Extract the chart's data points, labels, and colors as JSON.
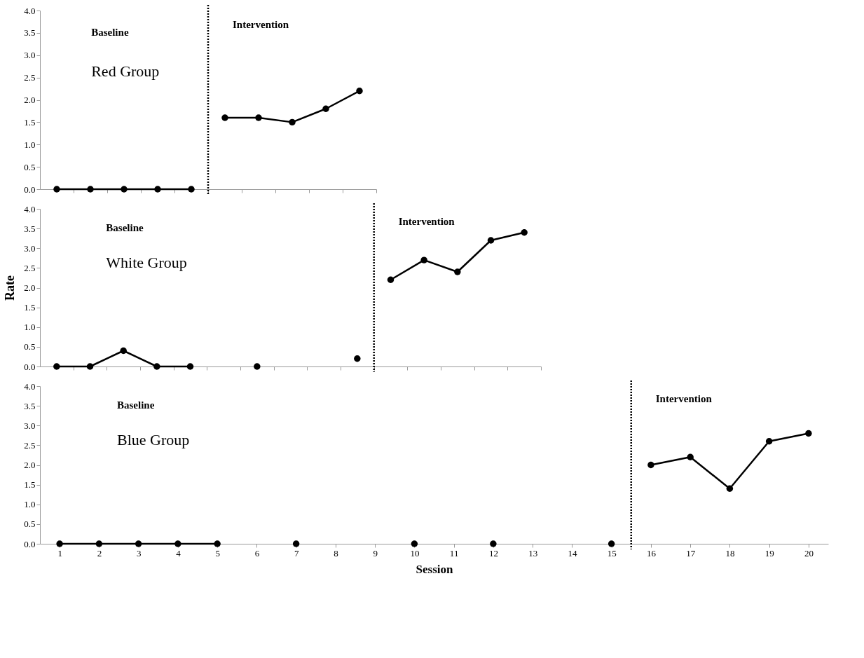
{
  "chart_data": [
    {
      "type": "line",
      "categories": [
        null,
        null,
        null,
        null,
        null,
        null,
        null,
        null,
        null,
        null
      ],
      "ylim": [
        0,
        4
      ],
      "marker": "circle",
      "grid": false,
      "tick_labels": "y",
      "yticks": [
        {
          "value": 0,
          "label": "0.0"
        },
        {
          "value": 0.5,
          "label": "0.5"
        },
        {
          "value": 1,
          "label": "1.0"
        },
        {
          "value": 1.5,
          "label": "1.5"
        },
        {
          "value": 2,
          "label": "2.0"
        },
        {
          "value": 2.5,
          "label": "2.5"
        },
        {
          "value": 3,
          "label": "3.0"
        },
        {
          "value": 3.5,
          "label": "3.5"
        },
        {
          "value": 4,
          "label": "4.0"
        }
      ],
      "annotations": [
        "Baseline",
        "Intervention",
        "Red Group"
      ],
      "series": [
        {
          "color": "#000000",
          "values": [
            0,
            0,
            0,
            0,
            0,
            null,
            null,
            null,
            null,
            null
          ]
        },
        {
          "color": "#000000",
          "values": [
            null,
            null,
            null,
            null,
            null,
            1.6,
            1.6,
            1.5,
            1.8,
            2.2
          ]
        }
      ]
    },
    {
      "type": "line",
      "categories": [
        null,
        null,
        null,
        null,
        null,
        null,
        null,
        null,
        null,
        null,
        null,
        null,
        null,
        null,
        null
      ],
      "ylim": [
        0,
        4
      ],
      "marker": "circle",
      "grid": false,
      "tick_labels": "y",
      "ylabel": "Rate",
      "yticks": [
        {
          "value": 0,
          "label": "0.0"
        },
        {
          "value": 0.5,
          "label": "0.5"
        },
        {
          "value": 1,
          "label": "1.0"
        },
        {
          "value": 1.5,
          "label": "1.5"
        },
        {
          "value": 2,
          "label": "2.0"
        },
        {
          "value": 2.5,
          "label": "2.5"
        },
        {
          "value": 3,
          "label": "3.0"
        },
        {
          "value": 3.5,
          "label": "3.5"
        },
        {
          "value": 4,
          "label": "4.0"
        }
      ],
      "annotations": [
        "Baseline",
        "Intervention",
        "White Group"
      ],
      "series": [
        {
          "color": "#000000",
          "values": [
            0,
            0,
            0.4,
            0,
            0,
            null,
            null,
            null,
            null,
            null,
            null,
            null,
            null,
            null,
            null
          ]
        },
        {
          "type": "scatter",
          "color": "#000000",
          "values": [
            null,
            null,
            null,
            null,
            null,
            null,
            0,
            null,
            null,
            0.2,
            null,
            null,
            null,
            null,
            null
          ]
        },
        {
          "color": "#000000",
          "values": [
            null,
            null,
            null,
            null,
            null,
            null,
            null,
            null,
            null,
            null,
            2.2,
            2.7,
            2.4,
            3.2,
            3.4
          ]
        }
      ]
    },
    {
      "type": "line",
      "xlim": [
        0.5,
        20.5
      ],
      "ylim": [
        0,
        4
      ],
      "marker": "circle",
      "grid": false,
      "xlabel": "Session",
      "xticks": [
        1,
        2,
        3,
        4,
        5,
        6,
        7,
        8,
        9,
        10,
        11,
        12,
        13,
        14,
        15,
        16,
        17,
        18,
        19,
        20
      ],
      "yticks": [
        {
          "value": 0,
          "label": "0.0"
        },
        {
          "value": 0.5,
          "label": "0.5"
        },
        {
          "value": 1,
          "label": "1.0"
        },
        {
          "value": 1.5,
          "label": "1.5"
        },
        {
          "value": 2,
          "label": "2.0"
        },
        {
          "value": 2.5,
          "label": "2.5"
        },
        {
          "value": 3,
          "label": "3.0"
        },
        {
          "value": 3.5,
          "label": "3.5"
        },
        {
          "value": 4,
          "label": "4.0"
        }
      ],
      "annotations": [
        "Baseline",
        "Intervention",
        "Blue Group"
      ],
      "ref_lines": [
        {
          "axis": "x",
          "value": 15.5,
          "line_style": "dotted",
          "color": "#000000"
        }
      ],
      "series": [
        {
          "color": "#000000",
          "x": [
            1,
            2,
            3,
            4,
            5
          ],
          "values": [
            0,
            0,
            0,
            0,
            0
          ]
        },
        {
          "type": "scatter",
          "color": "#000000",
          "x": [
            7,
            10,
            12,
            15
          ],
          "values": [
            0,
            0,
            0,
            0
          ]
        },
        {
          "color": "#000000",
          "x": [
            16,
            17,
            18,
            19,
            20
          ],
          "values": [
            2.0,
            2.2,
            1.4,
            2.6,
            2.8
          ]
        }
      ]
    }
  ]
}
